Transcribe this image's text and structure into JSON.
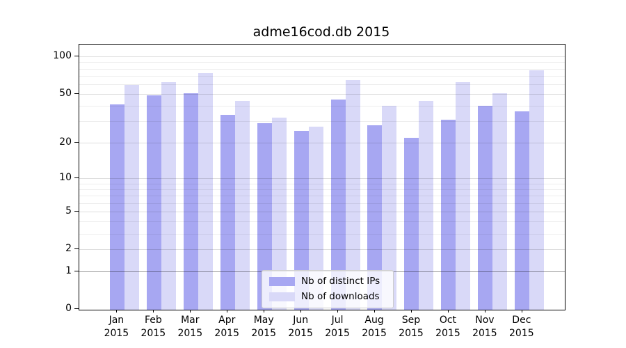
{
  "title": "adme16cod.db 2015",
  "chart_data": {
    "type": "bar",
    "title": "adme16cod.db 2015",
    "categories": [
      "Jan",
      "Feb",
      "Mar",
      "Apr",
      "May",
      "Jun",
      "Jul",
      "Aug",
      "Sep",
      "Oct",
      "Nov",
      "Dec"
    ],
    "category_year": "2015",
    "series": [
      {
        "name": "Nb of distinct IPs",
        "color": "#a7a7f2",
        "values": [
          41,
          49,
          51,
          34,
          29,
          25,
          45,
          28,
          22,
          31,
          40,
          36
        ]
      },
      {
        "name": "Nb of downloads",
        "color": "#d9d9f8",
        "values": [
          59,
          62,
          74,
          44,
          32,
          27,
          65,
          40,
          44,
          62,
          51,
          78
        ]
      }
    ],
    "xlabel": "",
    "ylabel": "",
    "yscale": "symlog",
    "yticks": [
      0,
      1,
      2,
      5,
      10,
      20,
      50,
      100
    ],
    "minor_yticks": [
      3,
      4,
      6,
      7,
      8,
      9,
      30,
      40,
      60,
      70,
      80,
      90
    ],
    "ylim": [
      0,
      125
    ],
    "grid": "on",
    "legend_position": "lower center"
  }
}
